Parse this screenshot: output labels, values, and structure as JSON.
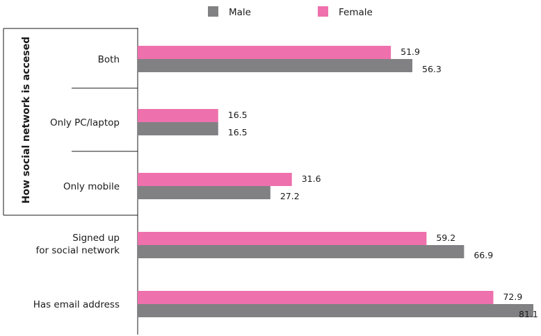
{
  "chart_data": {
    "type": "bar",
    "orientation": "horizontal",
    "categories": [
      [
        "Both"
      ],
      [
        "Only PC/laptop"
      ],
      [
        "Only mobile"
      ],
      [
        "Signed up",
        "for social network"
      ],
      [
        "Has email address"
      ]
    ],
    "category_group": {
      "label": "How social network is accesed",
      "members": [
        0,
        1,
        2
      ]
    },
    "series": [
      {
        "name": "Male",
        "color": "#818184",
        "values": [
          56.3,
          16.5,
          27.2,
          66.9,
          81.1
        ]
      },
      {
        "name": "Female",
        "color": "#ee70ac",
        "values": [
          51.9,
          16.5,
          31.6,
          59.2,
          72.9
        ]
      }
    ],
    "xlim": [
      0,
      81.1
    ],
    "grid": false,
    "legend_position": "top-center"
  }
}
